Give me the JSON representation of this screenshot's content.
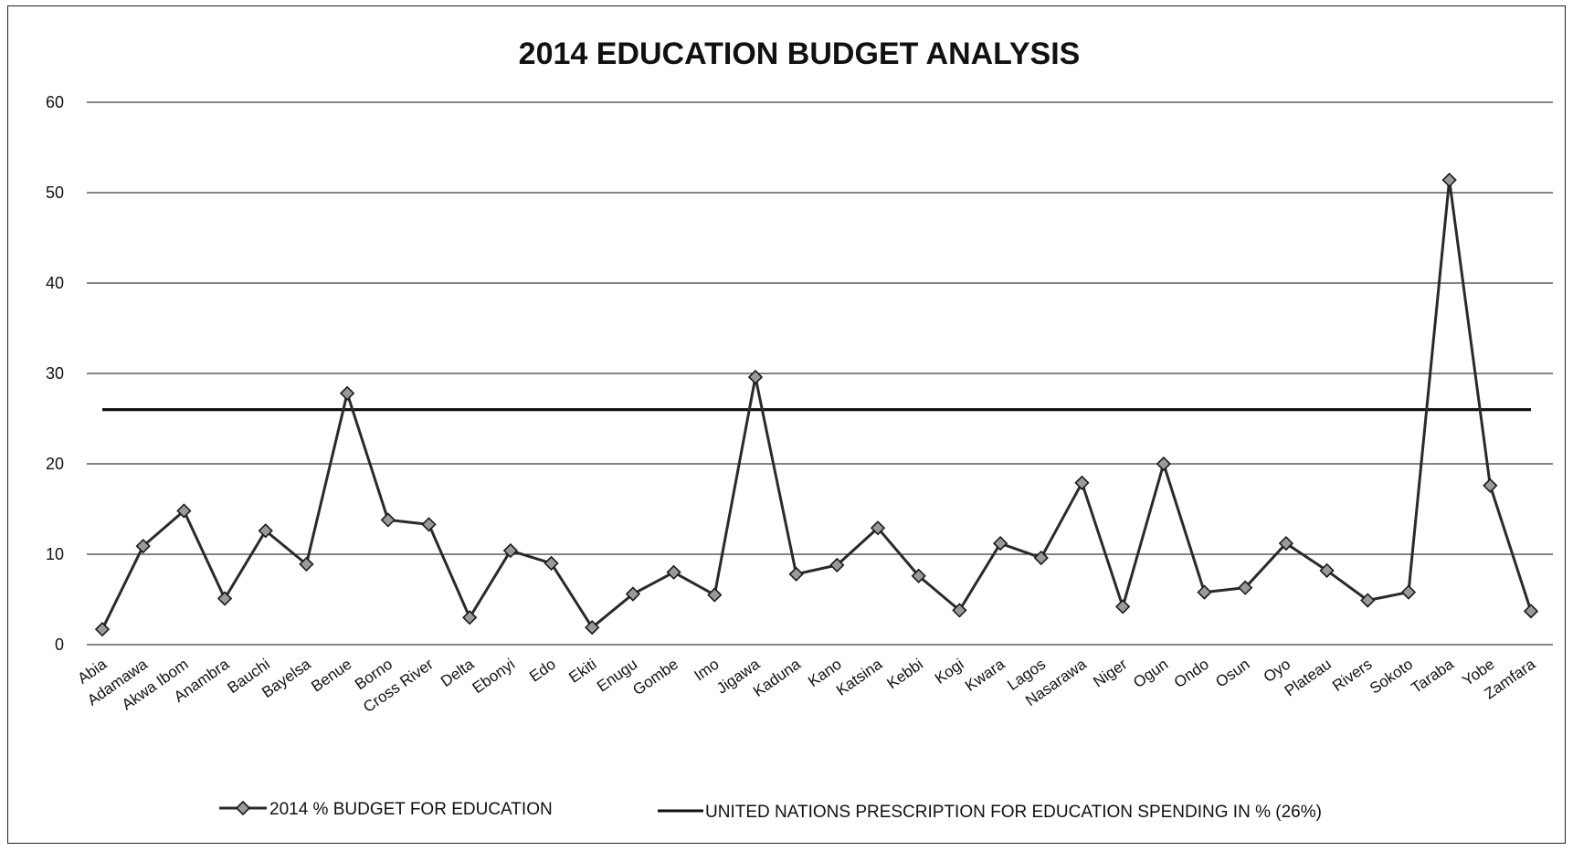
{
  "chart_data": {
    "type": "line",
    "title": "2014 EDUCATION BUDGET ANALYSIS",
    "xlabel": "",
    "ylabel": "",
    "ylim": [
      0,
      60
    ],
    "yticks": [
      0,
      10,
      20,
      30,
      40,
      50,
      60
    ],
    "grid": true,
    "legend_position": "bottom",
    "categories": [
      "Abia",
      "Adamawa",
      "Akwa Ibom",
      "Anambra",
      "Bauchi",
      "Bayelsa",
      "Benue",
      "Borno",
      "Cross River",
      "Delta",
      "Ebonyi",
      "Edo",
      "Ekiti",
      "Enugu",
      "Gombe",
      "Imo",
      "Jigawa",
      "Kaduna",
      "Kano",
      "Katsina",
      "Kebbi",
      "Kogi",
      "Kwara",
      "Lagos",
      "Nasarawa",
      "Niger",
      "Ogun",
      "Ondo",
      "Osun",
      "Oyo",
      "Plateau",
      "Rivers",
      "Sokoto",
      "Taraba",
      "Yobe",
      "Zamfara"
    ],
    "series": [
      {
        "name": "2014 % BUDGET FOR EDUCATION",
        "marker": "diamond",
        "color": "#2a2a2a",
        "values": [
          1.7,
          10.9,
          14.8,
          5.1,
          12.6,
          8.9,
          27.8,
          13.8,
          13.3,
          3.0,
          10.4,
          9.0,
          1.9,
          5.6,
          8.0,
          5.5,
          29.6,
          7.8,
          8.8,
          12.9,
          7.6,
          3.8,
          11.2,
          9.6,
          17.9,
          4.2,
          20.0,
          5.8,
          6.3,
          11.2,
          8.2,
          4.9,
          5.8,
          51.4,
          17.6,
          3.7
        ]
      },
      {
        "name": "UNITED NATIONS PRESCRIPTION FOR EDUCATION SPENDING IN % (26%)",
        "marker": "none",
        "color": "#111111",
        "values": [
          26,
          26,
          26,
          26,
          26,
          26,
          26,
          26,
          26,
          26,
          26,
          26,
          26,
          26,
          26,
          26,
          26,
          26,
          26,
          26,
          26,
          26,
          26,
          26,
          26,
          26,
          26,
          26,
          26,
          26,
          26,
          26,
          26,
          26,
          26,
          26
        ]
      }
    ]
  }
}
